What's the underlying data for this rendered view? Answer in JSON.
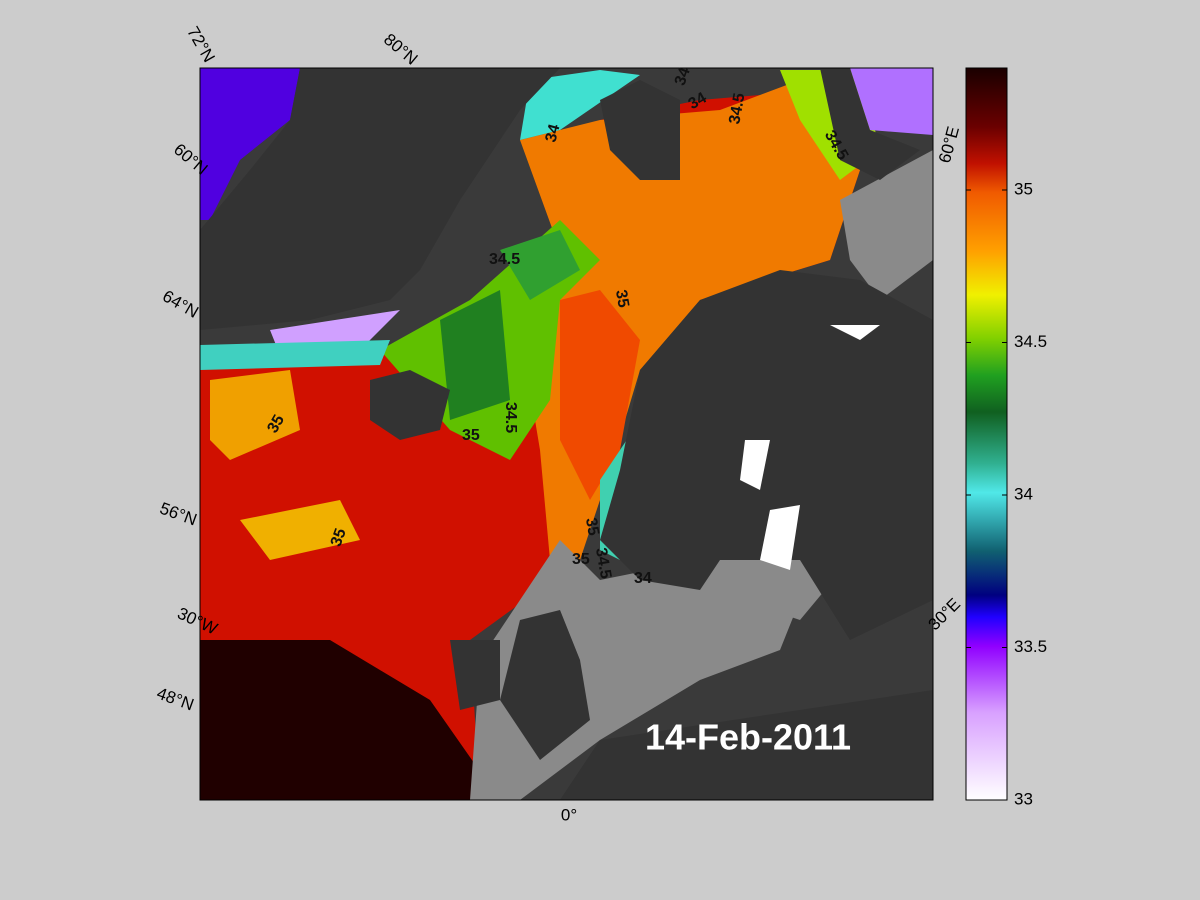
{
  "map": {
    "date_label": "14-Feb-2011",
    "graticule_labels": [
      "72°N",
      "80°N",
      "60°N",
      "64°N",
      "56°N",
      "30°W",
      "48°N",
      "0°",
      "60°E",
      "30°E"
    ],
    "contour_labels": [
      34,
      34,
      34.5,
      34.5,
      34,
      34.5,
      35,
      34.5,
      35,
      35,
      35,
      35,
      34.5,
      35,
      34
    ],
    "colorbar": {
      "range": [
        33,
        35.4
      ],
      "ticks": [
        33,
        33.5,
        34,
        34.5,
        35
      ]
    }
  }
}
